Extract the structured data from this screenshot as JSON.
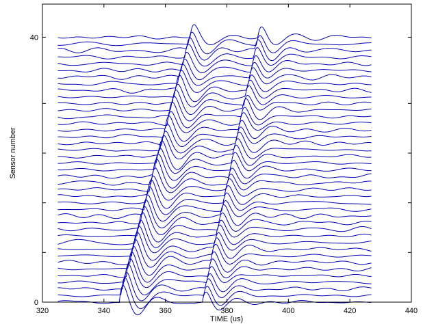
{
  "chart_data": {
    "type": "line",
    "title": "",
    "xlabel": "TIME (us)",
    "ylabel": "Sensor number",
    "xlim": [
      320,
      440
    ],
    "ylim": [
      0,
      45
    ],
    "x_ticks": [
      320,
      340,
      360,
      380,
      400,
      420,
      440
    ],
    "y_tick_labels": [
      {
        "value": 0,
        "label": "0"
      },
      {
        "value": 40,
        "label": "40"
      }
    ],
    "y_ticks_unlabeled": [
      7.5,
      15,
      22.5,
      30
    ],
    "grid": false,
    "line_color": "#0000b4",
    "series_count": 41,
    "series_baseline_step": 1,
    "x_range": [
      325,
      427
    ],
    "waveform_events": [
      {
        "name": "first-arrival",
        "start_time_sensor_0": 345,
        "start_time_sensor_40": 368,
        "peak_amplitude": 4.2
      },
      {
        "name": "second-arrival",
        "start_time_sensor_0": 372,
        "start_time_sensor_40": 390,
        "peak_amplitude": 3.2
      }
    ],
    "noise_amplitude": 0.35
  }
}
